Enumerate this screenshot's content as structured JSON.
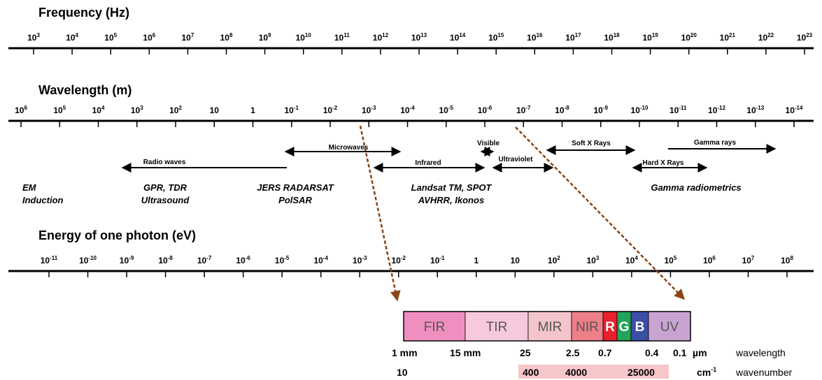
{
  "frequency": {
    "title": "Frequency (Hz)",
    "labels": [
      {
        "b": "10",
        "e": "3"
      },
      {
        "b": "10",
        "e": "4"
      },
      {
        "b": "10",
        "e": "5"
      },
      {
        "b": "10",
        "e": "6"
      },
      {
        "b": "10",
        "e": "7"
      },
      {
        "b": "10",
        "e": "8"
      },
      {
        "b": "10",
        "e": "9"
      },
      {
        "b": "10",
        "e": "10"
      },
      {
        "b": "10",
        "e": "11"
      },
      {
        "b": "10",
        "e": "12"
      },
      {
        "b": "10",
        "e": "13"
      },
      {
        "b": "10",
        "e": "14"
      },
      {
        "b": "10",
        "e": "15"
      },
      {
        "b": "10",
        "e": "16"
      },
      {
        "b": "10",
        "e": "17"
      },
      {
        "b": "10",
        "e": "18"
      },
      {
        "b": "10",
        "e": "19"
      },
      {
        "b": "10",
        "e": "20"
      },
      {
        "b": "10",
        "e": "21"
      },
      {
        "b": "10",
        "e": "22"
      },
      {
        "b": "10",
        "e": "23"
      }
    ]
  },
  "wavelength": {
    "title": "Wavelength (m)",
    "labels": [
      {
        "b": "10",
        "e": "6"
      },
      {
        "b": "10",
        "e": "5"
      },
      {
        "b": "10",
        "e": "4"
      },
      {
        "b": "10",
        "e": "3"
      },
      {
        "b": "10",
        "e": "2"
      },
      {
        "b": "10",
        "e": ""
      },
      {
        "b": "1",
        "e": ""
      },
      {
        "b": "10",
        "e": "-1"
      },
      {
        "b": "10",
        "e": "-2"
      },
      {
        "b": "10",
        "e": "-3"
      },
      {
        "b": "10",
        "e": "-4"
      },
      {
        "b": "10",
        "e": "-5"
      },
      {
        "b": "10",
        "e": "-6"
      },
      {
        "b": "10",
        "e": "-7"
      },
      {
        "b": "10",
        "e": "-8"
      },
      {
        "b": "10",
        "e": "-9"
      },
      {
        "b": "10",
        "e": "-10"
      },
      {
        "b": "10",
        "e": "-11"
      },
      {
        "b": "10",
        "e": "-12"
      },
      {
        "b": "10",
        "e": "-13"
      },
      {
        "b": "10",
        "e": "-14"
      }
    ]
  },
  "energy": {
    "title": "Energy of one photon (eV)",
    "labels": [
      {
        "b": "10",
        "e": "-11"
      },
      {
        "b": "10",
        "e": "-10"
      },
      {
        "b": "10",
        "e": "-9"
      },
      {
        "b": "10",
        "e": "-8"
      },
      {
        "b": "10",
        "e": "-7"
      },
      {
        "b": "10",
        "e": "-6"
      },
      {
        "b": "10",
        "e": "-5"
      },
      {
        "b": "10",
        "e": "-4"
      },
      {
        "b": "10",
        "e": "-3"
      },
      {
        "b": "10",
        "e": "-2"
      },
      {
        "b": "10",
        "e": "-1"
      },
      {
        "b": "1",
        "e": ""
      },
      {
        "b": "10",
        "e": ""
      },
      {
        "b": "10",
        "e": "2"
      },
      {
        "b": "10",
        "e": "3"
      },
      {
        "b": "10",
        "e": "4"
      },
      {
        "b": "10",
        "e": "5"
      },
      {
        "b": "10",
        "e": "6"
      },
      {
        "b": "10",
        "e": "7"
      },
      {
        "b": "10",
        "e": "8"
      }
    ]
  },
  "regions": {
    "microwaves": "Microwaves",
    "visible": "Visible",
    "soft_x_rays": "Soft X Rays",
    "gamma_rays": "Gamma rays",
    "radio_waves": "Radio waves",
    "infrared": "Infrared",
    "ultraviolet": "Ultraviolet",
    "hard_x_rays": "Hard X Rays"
  },
  "applications": {
    "em_induction": [
      "EM",
      "Induction"
    ],
    "gpr": [
      "GPR, TDR",
      "Ultrasound"
    ],
    "jers": [
      "JERS RADARSAT",
      "PolSAR"
    ],
    "landsat": [
      "Landsat TM, SPOT",
      "AVHRR, Ikonos"
    ],
    "gamma_radiometrics": "Gamma radiometrics"
  },
  "bands": [
    {
      "label": "FIR",
      "color": "#ef8fbf"
    },
    {
      "label": "TIR",
      "color": "#f7c9dc"
    },
    {
      "label": "MIR",
      "color": "#f3c5cb"
    },
    {
      "label": "NIR",
      "color": "#ed7f89"
    },
    {
      "label": "R",
      "color": "#e8202a"
    },
    {
      "label": "G",
      "color": "#22a45a"
    },
    {
      "label": "B",
      "color": "#3b4fa5"
    },
    {
      "label": "UV",
      "color": "#c9a4d3"
    }
  ],
  "wavelength_row": {
    "values": [
      "1 mm",
      "15 mm",
      "25",
      "2.5",
      "0.7",
      "0.4",
      "0.1"
    ],
    "unit": "µm",
    "name": "wavelength"
  },
  "wavenumber_row": {
    "values": [
      "10",
      "400",
      "4000",
      "25000"
    ],
    "unit_base": "cm",
    "unit_exp": "-1",
    "name": "wavenumber",
    "highlight": "#f7c6c9"
  },
  "colors": {
    "arrow_brown": "#8b4513"
  }
}
